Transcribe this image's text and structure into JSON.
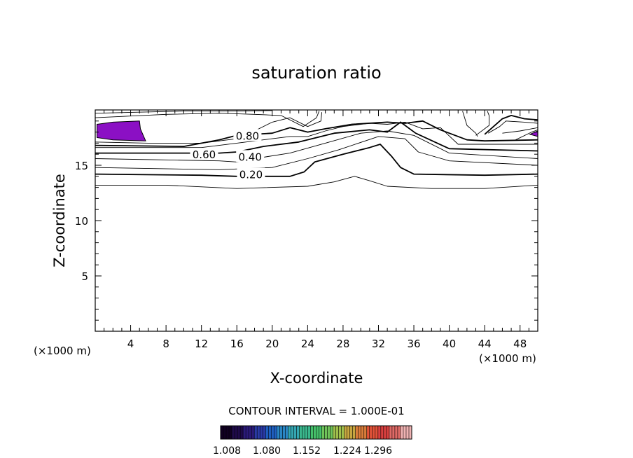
{
  "chart_data": {
    "type": "contour",
    "title": "saturation ratio",
    "xlabel": "X-coordinate",
    "ylabel": "Z-coordinate",
    "x_unit_left": "(×1000 m)",
    "x_unit_right": "(×1000 m)",
    "xlim": [
      0,
      50
    ],
    "ylim": [
      0,
      20
    ],
    "x_ticks": [
      4,
      8,
      12,
      16,
      20,
      24,
      28,
      32,
      36,
      40,
      44,
      48
    ],
    "y_ticks": [
      5,
      10,
      15
    ],
    "contour_interval_label": "CONTOUR INTERVAL = 1.000E-01",
    "contour_labels": [
      {
        "text": "0.80",
        "x": 17.2,
        "y": 17.7
      },
      {
        "text": "0.60",
        "x": 12.3,
        "y": 16.0
      },
      {
        "text": "0.40",
        "x": 17.5,
        "y": 15.8
      },
      {
        "text": "0.20",
        "x": 17.6,
        "y": 14.2
      }
    ],
    "contours": [
      {
        "kind": "thin",
        "points": [
          [
            0,
            13.2
          ],
          [
            8,
            13.2
          ],
          [
            16,
            12.9
          ],
          [
            24,
            13.1
          ],
          [
            27,
            13.5
          ],
          [
            29.3,
            14.0
          ],
          [
            31,
            13.6
          ],
          [
            33,
            13.1
          ],
          [
            38,
            12.9
          ],
          [
            44,
            12.9
          ],
          [
            50,
            13.2
          ]
        ]
      },
      {
        "kind": "thick",
        "points": [
          [
            0,
            14.2
          ],
          [
            12,
            14.1
          ],
          [
            16,
            14.0
          ],
          [
            22,
            14.0
          ],
          [
            23.6,
            14.4
          ],
          [
            24.8,
            15.3
          ],
          [
            28,
            16.0
          ],
          [
            31,
            16.6
          ],
          [
            32.2,
            16.9
          ],
          [
            33.5,
            15.8
          ],
          [
            34.5,
            14.8
          ],
          [
            36,
            14.2
          ],
          [
            44,
            14.1
          ],
          [
            50,
            14.2
          ]
        ]
      },
      {
        "kind": "thin",
        "points": [
          [
            0,
            14.8
          ],
          [
            14,
            14.6
          ],
          [
            20,
            14.8
          ],
          [
            24,
            15.6
          ],
          [
            27.5,
            16.4
          ],
          [
            32,
            17.6
          ],
          [
            35,
            17.4
          ],
          [
            36.5,
            16.2
          ],
          [
            40,
            15.4
          ],
          [
            50,
            15.0
          ]
        ]
      },
      {
        "kind": "thin",
        "points": [
          [
            0,
            15.6
          ],
          [
            14,
            15.4
          ],
          [
            16,
            15.3
          ],
          [
            18,
            15.6
          ],
          [
            22,
            16.1
          ],
          [
            26,
            17.0
          ],
          [
            30,
            17.9
          ],
          [
            33,
            18.1
          ],
          [
            36,
            17.7
          ],
          [
            40,
            16.1
          ],
          [
            50,
            15.6
          ]
        ]
      },
      {
        "kind": "thick",
        "points": [
          [
            0,
            16.1
          ],
          [
            14,
            16.1
          ],
          [
            16,
            16.2
          ],
          [
            19,
            16.7
          ],
          [
            23,
            17.1
          ],
          [
            27,
            17.9
          ],
          [
            31,
            18.2
          ],
          [
            33,
            18.0
          ],
          [
            34.5,
            18.9
          ],
          [
            36.2,
            17.9
          ],
          [
            40,
            16.5
          ],
          [
            50,
            16.3
          ]
        ]
      },
      {
        "kind": "thin",
        "points": [
          [
            0,
            16.6
          ],
          [
            12,
            16.6
          ],
          [
            16,
            17.0
          ],
          [
            20,
            17.4
          ],
          [
            22,
            17.6
          ],
          [
            24,
            17.6
          ],
          [
            26,
            18.1
          ],
          [
            28,
            18.5
          ],
          [
            31,
            18.8
          ],
          [
            33,
            18.7
          ],
          [
            35,
            18.9
          ],
          [
            37,
            18.3
          ],
          [
            39,
            18.4
          ],
          [
            41,
            16.9
          ],
          [
            50,
            16.9
          ]
        ]
      },
      {
        "kind": "thick",
        "points": [
          [
            0,
            16.8
          ],
          [
            10,
            16.7
          ],
          [
            14,
            17.3
          ],
          [
            16,
            17.7
          ],
          [
            20,
            17.9
          ],
          [
            22,
            18.4
          ],
          [
            24,
            18.0
          ],
          [
            26,
            18.3
          ],
          [
            29,
            18.7
          ],
          [
            33,
            18.9
          ],
          [
            35,
            18.8
          ],
          [
            37,
            19.0
          ],
          [
            39,
            18.2
          ],
          [
            42,
            17.3
          ],
          [
            44,
            17.2
          ],
          [
            50,
            17.3
          ]
        ]
      },
      {
        "kind": "thin",
        "points": [
          [
            0,
            17.1
          ],
          [
            6,
            17.0
          ],
          [
            12,
            17.0
          ],
          [
            16,
            17.4
          ],
          [
            18,
            18.1
          ],
          [
            20,
            18.9
          ],
          [
            22,
            19.3
          ],
          [
            24,
            18.5
          ],
          [
            25.5,
            19.0
          ],
          [
            25.6,
            19.8
          ]
        ]
      },
      {
        "kind": "thin",
        "points": [
          [
            0,
            19.3
          ],
          [
            8,
            19.6
          ],
          [
            14,
            19.7
          ],
          [
            18,
            19.6
          ],
          [
            21,
            19.5
          ],
          [
            23.5,
            18.5
          ],
          [
            25,
            19.3
          ],
          [
            25.3,
            19.9
          ]
        ]
      },
      {
        "kind": "thin",
        "points": [
          [
            0,
            19.7
          ],
          [
            10,
            19.9
          ],
          [
            16,
            19.9
          ],
          [
            20,
            19.95
          ]
        ]
      },
      {
        "kind": "thin",
        "points": [
          [
            43,
            17.7
          ],
          [
            44.5,
            18.6
          ],
          [
            44.5,
            19.5
          ],
          [
            44.3,
            19.9
          ]
        ]
      },
      {
        "kind": "thick",
        "points": [
          [
            44,
            17.8
          ],
          [
            45,
            18.5
          ],
          [
            46,
            19.2
          ],
          [
            47,
            19.5
          ],
          [
            48.5,
            19.2
          ],
          [
            50,
            19.1
          ]
        ]
      },
      {
        "kind": "thin",
        "points": [
          [
            44.4,
            17.9
          ],
          [
            45.7,
            18.5
          ],
          [
            46.4,
            19.0
          ],
          [
            48.5,
            18.9
          ],
          [
            50,
            18.8
          ]
        ]
      },
      {
        "kind": "thin",
        "points": [
          [
            46,
            17.9
          ],
          [
            48,
            18.1
          ],
          [
            50,
            18.4
          ]
        ]
      },
      {
        "kind": "thin",
        "points": [
          [
            47.5,
            17.3
          ],
          [
            49.3,
            18.0
          ],
          [
            50,
            18.2
          ]
        ]
      },
      {
        "kind": "thin",
        "points": [
          [
            41.5,
            19.9
          ],
          [
            42,
            18.6
          ],
          [
            43,
            17.9
          ],
          [
            43.2,
            17.6
          ]
        ]
      }
    ],
    "filled_regions": [
      {
        "level": "> 1.008",
        "color": "#8b10c4",
        "points": [
          [
            0.2,
            18.7
          ],
          [
            2,
            18.9
          ],
          [
            5,
            19.0
          ],
          [
            5.1,
            18.3
          ],
          [
            5.7,
            17.2
          ],
          [
            2,
            17.3
          ],
          [
            0.2,
            17.5
          ]
        ]
      },
      {
        "level": "> 1.008",
        "color": "#8b10c4",
        "points": [
          [
            49.1,
            17.8
          ],
          [
            50,
            18.1
          ],
          [
            50,
            17.6
          ],
          [
            49.1,
            17.8
          ]
        ]
      }
    ],
    "colorbar": {
      "ticks": [
        "1.008",
        "1.080",
        "1.152",
        "1.224",
        "1.296"
      ],
      "colors": [
        "#110022",
        "#1f0a4a",
        "#2b1a7a",
        "#2a3aa6",
        "#1f5fc0",
        "#2a86c4",
        "#34a6b2",
        "#3ab68c",
        "#45c06a",
        "#6fc35a",
        "#9fbf4c",
        "#c7a640",
        "#d97c3a",
        "#e25238",
        "#d9403f",
        "#e06a66",
        "#f0b3b3"
      ]
    },
    "grid": false
  }
}
